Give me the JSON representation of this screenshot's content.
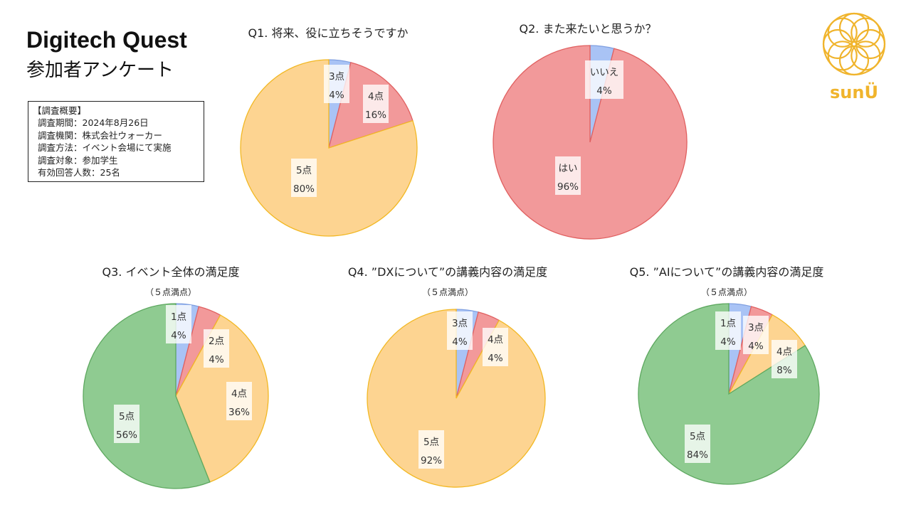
{
  "header": {
    "title": "Digitech Quest",
    "subtitle": "参加者アンケート"
  },
  "summary": {
    "heading": "【調査概要】",
    "lines": [
      "調査期間：2024年8月26日",
      "調査機関：株式会社ウォーカー",
      "調査方法：イベント会場にて実施",
      "調査対象：参加学生",
      "有効回答人数：25名"
    ]
  },
  "logo": {
    "icon": "flower-mandala-icon",
    "text": "sunÜ",
    "color": "#f0b42c"
  },
  "colors": {
    "blue": "#a9c3f5",
    "red": "#f08c8c",
    "yellow": "#fdd491",
    "green": "#8cca8e"
  },
  "chart_data": [
    {
      "type": "pie",
      "title": "Q1. 将来、役に立ちそうですか",
      "subtitle": "",
      "slices": [
        {
          "label": "3点",
          "value": 4,
          "color": "blue"
        },
        {
          "label": "4点",
          "value": 16,
          "color": "red"
        },
        {
          "label": "5点",
          "value": 80,
          "color": "yellow"
        }
      ]
    },
    {
      "type": "pie",
      "title": "Q2. また来たいと思うか？",
      "subtitle": "",
      "slices": [
        {
          "label": "いいえ",
          "value": 4,
          "color": "blue"
        },
        {
          "label": "はい",
          "value": 96,
          "color": "red"
        }
      ]
    },
    {
      "type": "pie",
      "title": "Q3. イベント全体の満足度",
      "subtitle": "（５点満点）",
      "slices": [
        {
          "label": "1点",
          "value": 4,
          "color": "blue"
        },
        {
          "label": "2点",
          "value": 4,
          "color": "red"
        },
        {
          "label": "4点",
          "value": 36,
          "color": "yellow"
        },
        {
          "label": "5点",
          "value": 56,
          "color": "green"
        }
      ]
    },
    {
      "type": "pie",
      "title": "Q4. ”DXについて”の講義内容の満足度",
      "subtitle": "（５点満点）",
      "slices": [
        {
          "label": "3点",
          "value": 4,
          "color": "blue"
        },
        {
          "label": "4点",
          "value": 4,
          "color": "red"
        },
        {
          "label": "5点",
          "value": 92,
          "color": "yellow"
        }
      ]
    },
    {
      "type": "pie",
      "title": "Q5. ”AIについて”の講義内容の満足度",
      "subtitle": "（５点満点）",
      "slices": [
        {
          "label": "1点",
          "value": 4,
          "color": "blue"
        },
        {
          "label": "3点",
          "value": 4,
          "color": "red"
        },
        {
          "label": "4点",
          "value": 8,
          "color": "yellow"
        },
        {
          "label": "5点",
          "value": 84,
          "color": "green"
        }
      ]
    }
  ]
}
